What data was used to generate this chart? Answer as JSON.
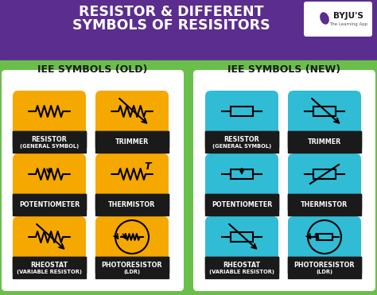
{
  "title_line1": "RESISTOR & DIFFERENT",
  "title_line2": "SYMBOLS OF RESISITORS",
  "header_bg": "#5b2d8e",
  "main_bg": "#6abf4b",
  "old_card_bg": "#f5a800",
  "new_card_bg": "#30bcd5",
  "card_label_bg": "#1a1a1a",
  "section_old": "IEE SYMBOLS (OLD)",
  "section_new": "IEE SYMBOLS (NEW)",
  "cards_old": [
    {
      "label": "RESISTOR\n(GENERAL SYMBOL)"
    },
    {
      "label": "TRIMMER"
    },
    {
      "label": "POTENTIOMETER"
    },
    {
      "label": "THERMISTOR"
    },
    {
      "label": "RHEOSTAT\n(VARIABLE RESISTOR)"
    },
    {
      "label": "PHOTORESISTOR\n(LDR)"
    }
  ],
  "cards_new": [
    {
      "label": "RESISTOR\n(GENERAL SYMBOL)"
    },
    {
      "label": "TRIMMER"
    },
    {
      "label": "POTENTIOMETER"
    },
    {
      "label": "THERMISTOR"
    },
    {
      "label": "RHEOSTAT\n(VARIABLE RESISTOR)"
    },
    {
      "label": "PHOTORESISTOR\n(LDR)"
    }
  ],
  "title_color": "#ffffff",
  "section_color": "#1a1a1a"
}
